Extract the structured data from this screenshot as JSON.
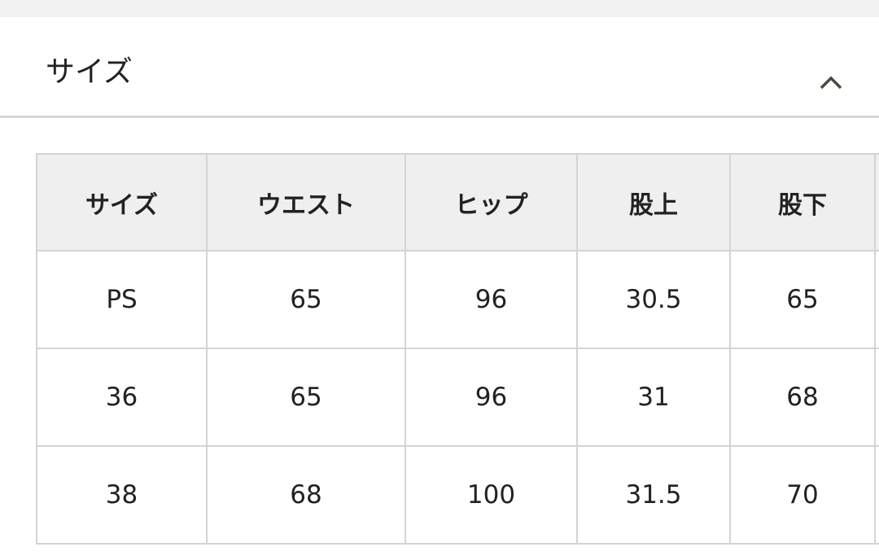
{
  "section": {
    "title": "サイズ",
    "expanded": true,
    "toggle_icon": "chevron-up-icon"
  },
  "table": {
    "headers": [
      "サイズ",
      "ウエスト",
      "ヒップ",
      "股上",
      "股下",
      ""
    ],
    "rows": [
      [
        "PS",
        "65",
        "96",
        "30.5",
        "65",
        ""
      ],
      [
        "36",
        "65",
        "96",
        "31",
        "68",
        ""
      ],
      [
        "38",
        "68",
        "100",
        "31.5",
        "70",
        ""
      ]
    ]
  }
}
